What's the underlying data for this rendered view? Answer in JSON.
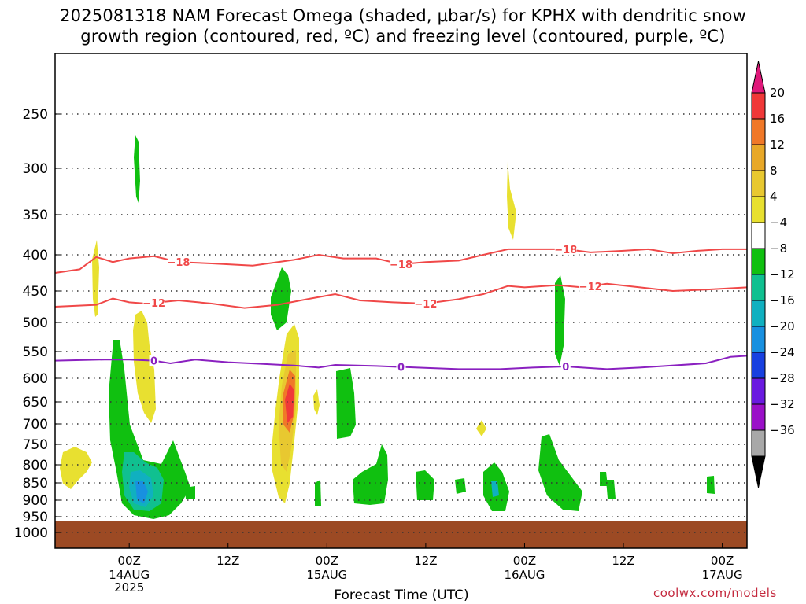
{
  "title_line1": "2025081318 NAM Forecast Omega (shaded, μbar/s) for KPHX with dendritic snow",
  "title_line2": "growth region (contoured, red, ºC) and freezing level (contoured, purple, ºC)",
  "credit": "coolwx.com/models",
  "chart_data": {
    "type": "contour",
    "title": "2025081318 NAM Forecast Omega (shaded, μbar/s) for KPHX with dendritic snow growth region (contoured, red, ºC) and freezing level (contoured, purple, ºC)",
    "xlabel": "Forecast Time (UTC)",
    "ylabel": "",
    "y_axis": {
      "scale": "pressure (log-like, inverted)",
      "range": [
        1000,
        200
      ],
      "tick_labels": [
        "250",
        "300",
        "350",
        "400",
        "450",
        "500",
        "550",
        "600",
        "650",
        "700",
        "750",
        "800",
        "850",
        "900",
        "950",
        "1000"
      ]
    },
    "x_axis": {
      "range_hours": [
        -9,
        75
      ],
      "ticks": [
        {
          "hour": 0,
          "label": "00Z",
          "sub": [
            "14AUG",
            "2025"
          ]
        },
        {
          "hour": 12,
          "label": "12Z",
          "sub": []
        },
        {
          "hour": 24,
          "label": "00Z",
          "sub": [
            "15AUG"
          ]
        },
        {
          "hour": 36,
          "label": "12Z",
          "sub": []
        },
        {
          "hour": 48,
          "label": "00Z",
          "sub": [
            "16AUG"
          ]
        },
        {
          "hour": 60,
          "label": "12Z",
          "sub": []
        },
        {
          "hour": 72,
          "label": "00Z",
          "sub": [
            "17AUG"
          ]
        }
      ]
    },
    "grid": true,
    "colorbar": {
      "labels": [
        "20",
        "16",
        "12",
        "8",
        "4",
        "-4",
        "-8",
        "-12",
        "-16",
        "-20",
        "-24",
        "-28",
        "-32",
        "-36"
      ],
      "colors": [
        "#e0187a",
        "#f03838",
        "#f07828",
        "#e8a828",
        "#e8c830",
        "#e8e030",
        "#ffffff",
        "#10c010",
        "#10c090",
        "#10b0c0",
        "#1890e0",
        "#1840e0",
        "#6a1ae0",
        "#9a10c8",
        "#a8a8a8",
        "#000000"
      ]
    },
    "contours": [
      {
        "label": "-18",
        "color": "#f04848",
        "points": [
          [
            -9,
            425
          ],
          [
            -6,
            420
          ],
          [
            -4,
            403
          ],
          [
            -2,
            410
          ],
          [
            0,
            405
          ],
          [
            3,
            402
          ],
          [
            6,
            410
          ],
          [
            10,
            412
          ],
          [
            15,
            415
          ],
          [
            20,
            407
          ],
          [
            23,
            400
          ],
          [
            26,
            405
          ],
          [
            30,
            405
          ],
          [
            33,
            413
          ],
          [
            36,
            410
          ],
          [
            40,
            408
          ],
          [
            43,
            400
          ],
          [
            46,
            393
          ],
          [
            48,
            393
          ],
          [
            53,
            393
          ],
          [
            56,
            397
          ],
          [
            60,
            395
          ],
          [
            63,
            393
          ],
          [
            66,
            398
          ],
          [
            69,
            395
          ],
          [
            72,
            393
          ],
          [
            75,
            393
          ]
        ]
      },
      {
        "label": "-12",
        "color": "#f04848",
        "points": [
          [
            -9,
            475
          ],
          [
            -4,
            472
          ],
          [
            -2,
            462
          ],
          [
            0,
            468
          ],
          [
            2,
            470
          ],
          [
            6,
            465
          ],
          [
            10,
            470
          ],
          [
            14,
            477
          ],
          [
            18,
            472
          ],
          [
            22,
            462
          ],
          [
            25,
            455
          ],
          [
            28,
            465
          ],
          [
            32,
            468
          ],
          [
            36,
            470
          ],
          [
            40,
            463
          ],
          [
            43,
            455
          ],
          [
            46,
            443
          ],
          [
            48,
            445
          ],
          [
            52,
            442
          ],
          [
            55,
            445
          ],
          [
            58,
            440
          ],
          [
            62,
            445
          ],
          [
            66,
            450
          ],
          [
            70,
            448
          ],
          [
            75,
            445
          ]
        ]
      },
      {
        "label": "0",
        "color": "#8a20c0",
        "points": [
          [
            -9,
            567
          ],
          [
            -3,
            565
          ],
          [
            0,
            565
          ],
          [
            3,
            567
          ],
          [
            5,
            572
          ],
          [
            8,
            565
          ],
          [
            12,
            570
          ],
          [
            16,
            573
          ],
          [
            20,
            576
          ],
          [
            23,
            580
          ],
          [
            25,
            575
          ],
          [
            30,
            577
          ],
          [
            35,
            580
          ],
          [
            40,
            583
          ],
          [
            45,
            583
          ],
          [
            49,
            580
          ],
          [
            53,
            578
          ],
          [
            58,
            583
          ],
          [
            62,
            580
          ],
          [
            65,
            577
          ],
          [
            70,
            572
          ],
          [
            73,
            560
          ],
          [
            75,
            558
          ]
        ]
      }
    ],
    "omega_shading_summary": [
      {
        "center_hour": 4,
        "center_hpa": 870,
        "min_value": -20,
        "description": "ascent maximum near 00Z 14AUG + 4h"
      },
      {
        "center_hour": 23,
        "center_hpa": 650,
        "max_value": 16,
        "description": "descent maximum near 00Z 15AUG"
      }
    ]
  }
}
